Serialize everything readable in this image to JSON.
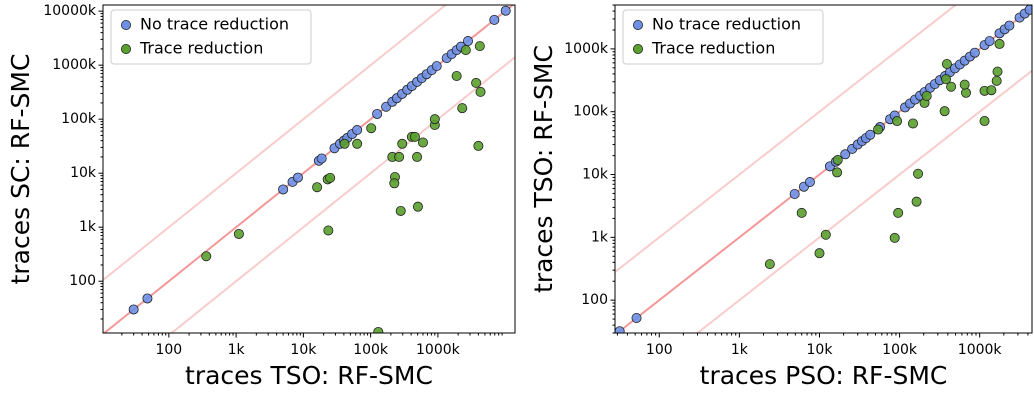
{
  "chart_data": [
    {
      "type": "scatter",
      "x_label": "traces TSO: RF-SMC",
      "y_label": "traces SC: RF-SMC",
      "xscale": "log",
      "yscale": "log",
      "legend": "upper left",
      "xlim": [
        10.5,
        14000000
      ],
      "ylim": [
        11,
        13000000
      ],
      "xticks": [
        100,
        {
          "value": 1000,
          "label": "1k"
        },
        {
          "value": 10000,
          "label": "10k"
        },
        {
          "value": 100000,
          "label": "100k"
        },
        {
          "value": 1000000,
          "label": "1000k"
        }
      ],
      "yticks": [
        100,
        {
          "value": 1000,
          "label": "1k"
        },
        {
          "value": 10000,
          "label": "10k"
        },
        {
          "value": 100000,
          "label": "100k"
        },
        {
          "value": 1000000,
          "label": "1000k"
        },
        {
          "value": 10000000,
          "label": "10000k"
        }
      ],
      "diagonal_factors": [
        0.1,
        1,
        10
      ],
      "series": [
        {
          "name": "No trace reduction",
          "color": "#6d8fe6",
          "x": [
            30,
            48,
            5000,
            6900,
            8300,
            17000,
            18700,
            29000,
            35000,
            40000,
            45000,
            53000,
            63000,
            125000,
            170000,
            210000,
            245000,
            293000,
            350000,
            410000,
            490000,
            575000,
            680000,
            810000,
            960000,
            1350000,
            1600000,
            1900000,
            2200000,
            2800000,
            6900000,
            10200000
          ],
          "values": [
            30,
            48,
            5000,
            6900,
            8300,
            17000,
            18700,
            29000,
            35000,
            40000,
            45000,
            53000,
            63000,
            125000,
            170000,
            210000,
            245000,
            293000,
            350000,
            410000,
            490000,
            575000,
            680000,
            810000,
            960000,
            1350000,
            1600000,
            1900000,
            2200000,
            2800000,
            6900000,
            10200000
          ]
        },
        {
          "name": "Trace reduction",
          "color": "#5aa02c",
          "x": [
            360,
            1100,
            16000,
            23000,
            25000,
            23500,
            41000,
            63000,
            102000,
            130000,
            210000,
            230000,
            225000,
            265000,
            280000,
            295000,
            410000,
            455000,
            490000,
            505000,
            600000,
            900000,
            900000,
            1900000,
            2600000,
            4200000,
            3700000,
            4300000,
            2300000,
            4000000
          ],
          "values": [
            290,
            750,
            5500,
            7700,
            8200,
            870,
            35000,
            35000,
            68000,
            11.5,
            20000,
            8500,
            6500,
            20000,
            2000,
            35000,
            47000,
            47000,
            20000,
            2400,
            37000,
            78000,
            100000,
            630000,
            1900000,
            2250000,
            470000,
            320000,
            160000,
            32000
          ]
        }
      ]
    },
    {
      "type": "scatter",
      "x_label": "traces PSO: RF-SMC",
      "y_label": "traces TSO: RF-SMC",
      "xscale": "log",
      "yscale": "log",
      "legend": "upper left",
      "xlim": [
        28,
        4500000
      ],
      "ylim": [
        30,
        5000000
      ],
      "xticks": [
        100,
        {
          "value": 1000,
          "label": "1k"
        },
        {
          "value": 10000,
          "label": "10k"
        },
        {
          "value": 100000,
          "label": "100k"
        },
        {
          "value": 1000000,
          "label": "1000k"
        }
      ],
      "yticks": [
        100,
        {
          "value": 1000,
          "label": "1k"
        },
        {
          "value": 10000,
          "label": "10k"
        },
        {
          "value": 100000,
          "label": "100k"
        },
        {
          "value": 1000000,
          "label": "1000k"
        }
      ],
      "diagonal_factors": [
        0.1,
        1,
        10
      ],
      "series": [
        {
          "name": "No trace reduction",
          "color": "#6d8fe6",
          "x": [
            32,
            52,
            4900,
            6400,
            7600,
            13500,
            16000,
            21000,
            25600,
            30000,
            34000,
            38000,
            43000,
            57000,
            76000,
            87000,
            117000,
            135000,
            156000,
            180000,
            205000,
            240000,
            275000,
            318000,
            370000,
            425000,
            490000,
            565000,
            650000,
            755000,
            870000,
            1150000,
            1330000,
            1770000,
            2050000,
            2350000,
            3150000,
            3650000,
            4200000
          ],
          "values": [
            32,
            52,
            4900,
            6400,
            7600,
            13500,
            16000,
            21000,
            25600,
            30000,
            34000,
            38000,
            43000,
            57000,
            76000,
            87000,
            117000,
            135000,
            156000,
            180000,
            205000,
            240000,
            275000,
            318000,
            370000,
            425000,
            490000,
            565000,
            650000,
            755000,
            870000,
            1150000,
            1330000,
            1770000,
            2050000,
            2350000,
            3150000,
            3650000,
            4200000
          ]
        },
        {
          "name": "Trace reduction",
          "color": "#5aa02c",
          "x": [
            2400,
            6000,
            10000,
            12000,
            16600,
            16900,
            54000,
            93000,
            96000,
            87000,
            163000,
            170000,
            147000,
            205000,
            218000,
            380000,
            390000,
            440000,
            365000,
            675000,
            650000,
            1150000,
            1150000,
            1400000,
            1630000,
            1670000,
            1770000
          ],
          "values": [
            375,
            2450,
            560,
            1100,
            10800,
            17000,
            52000,
            71000,
            2450,
            980,
            3700,
            10300,
            65000,
            138000,
            178000,
            330000,
            575000,
            250000,
            102000,
            200000,
            270000,
            215000,
            71000,
            220000,
            310000,
            435000,
            1200000
          ]
        }
      ]
    }
  ]
}
